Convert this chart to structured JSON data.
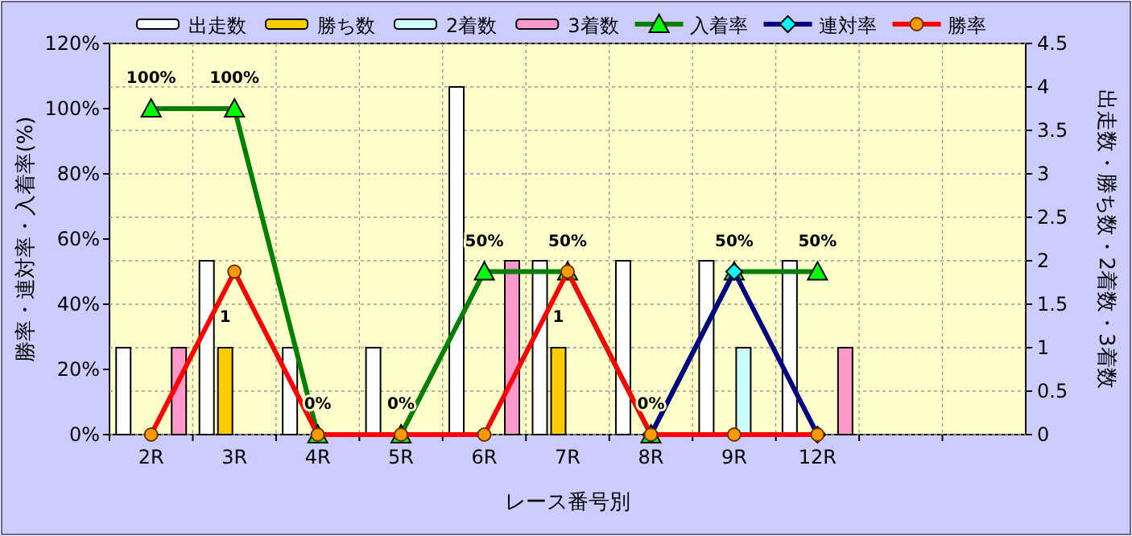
{
  "chart_data": {
    "type": "bar",
    "xlabel": "レース番号別",
    "ylabel": "勝率・連対率・入着率(%)",
    "y2label": "出走数・勝ち数・2着数・3着数",
    "categories": [
      "2R",
      "3R",
      "4R",
      "5R",
      "6R",
      "7R",
      "8R",
      "9R",
      "12R",
      null,
      null
    ],
    "series": [
      {
        "name": "出走数",
        "axis": "y2",
        "color": "#ffffff",
        "values": [
          1,
          2,
          1,
          1,
          4,
          2,
          2,
          2,
          2,
          null,
          null
        ]
      },
      {
        "name": "勝ち数",
        "axis": "y2",
        "color": "#ffcc00",
        "values": [
          0,
          1,
          0,
          0,
          0,
          1,
          0,
          0,
          0,
          null,
          null
        ],
        "value_labels": [
          null,
          "1",
          null,
          null,
          null,
          "1",
          null,
          null,
          null,
          null,
          null
        ]
      },
      {
        "name": "2着数",
        "axis": "y2",
        "color": "#ccffff",
        "values": [
          0,
          0,
          0,
          0,
          0,
          0,
          0,
          1,
          0,
          null,
          null
        ]
      },
      {
        "name": "3着数",
        "axis": "y2",
        "color": "#ff99cc",
        "values": [
          1,
          0,
          0,
          0,
          2,
          0,
          0,
          0,
          1,
          null,
          null
        ]
      },
      {
        "name": "入着率",
        "type": "line",
        "color": "#008000",
        "marker": "triangle",
        "values": [
          100,
          100,
          0,
          0,
          50,
          50,
          0,
          50,
          50,
          null,
          null
        ],
        "value_labels": [
          "100%",
          "100%",
          "0%",
          "0%",
          "50%",
          "50%",
          "0%",
          "50%",
          "50%",
          null,
          null
        ]
      },
      {
        "name": "連対率",
        "type": "line",
        "color": "#000080",
        "marker": "diamond",
        "values": [
          null,
          null,
          null,
          null,
          null,
          null,
          0,
          50,
          0,
          null,
          null
        ]
      },
      {
        "name": "勝率",
        "type": "line",
        "color": "#ff0000",
        "marker": "circle",
        "values": [
          0,
          50,
          0,
          0,
          0,
          50,
          0,
          0,
          0,
          null,
          null
        ]
      }
    ],
    "ylim": [
      0,
      120
    ],
    "yticks": [
      {
        "value": 0,
        "label": "0%"
      },
      {
        "value": 20,
        "label": "20%"
      },
      {
        "value": 40,
        "label": "40%"
      },
      {
        "value": 60,
        "label": "60%"
      },
      {
        "value": 80,
        "label": "80%"
      },
      {
        "value": 100,
        "label": "100%"
      },
      {
        "value": 120,
        "label": "120%"
      }
    ],
    "y2lim": [
      0,
      4.5
    ],
    "y2ticks": [
      0,
      0.5,
      1,
      1.5,
      2,
      2.5,
      3,
      3.5,
      4,
      4.5
    ],
    "grid": true,
    "legend": "top"
  }
}
